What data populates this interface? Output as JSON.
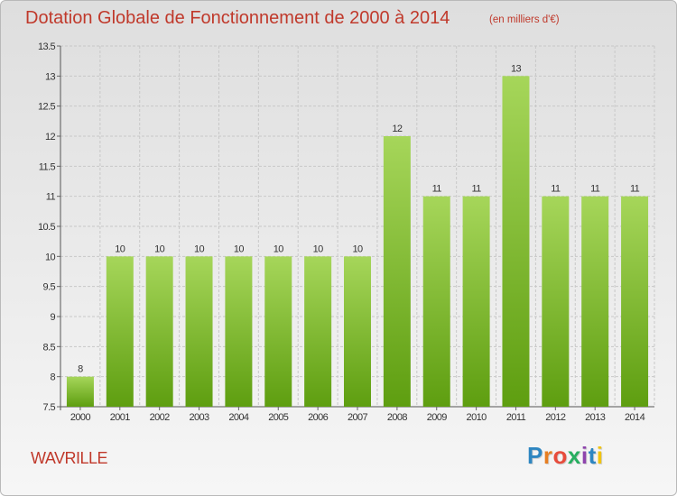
{
  "title": "Dotation Globale de Fonctionnement de 2000 à 2014",
  "subtitle": "(en milliers d'€)",
  "commune": "WAVRILLE",
  "logo": {
    "text": "Proxiti",
    "letters": [
      "P",
      "r",
      "o",
      "x",
      "i",
      "t",
      "i"
    ],
    "colors": [
      "#2e86c1",
      "#e67e22",
      "#e74c3c",
      "#27ae60",
      "#8e44ad",
      "#2e86c1",
      "#f1c40f"
    ]
  },
  "colors": {
    "bar_top": "#a6d65a",
    "bar_bottom": "#5e9e10",
    "title": "#c0392b",
    "grid": "#c8c8c8"
  },
  "chart_data": {
    "type": "bar",
    "title": "Dotation Globale de Fonctionnement de 2000 à 2014",
    "subtitle": "(en milliers d'€)",
    "categories": [
      "2000",
      "2001",
      "2002",
      "2003",
      "2004",
      "2005",
      "2006",
      "2007",
      "2008",
      "2009",
      "2010",
      "2011",
      "2012",
      "2013",
      "2014"
    ],
    "values": [
      8,
      10,
      10,
      10,
      10,
      10,
      10,
      10,
      12,
      11,
      11,
      13,
      11,
      11,
      11
    ],
    "ylim": [
      7.5,
      13.5
    ],
    "yticks": [
      7.5,
      8,
      8.5,
      9,
      9.5,
      10,
      10.5,
      11,
      11.5,
      12,
      12.5,
      13,
      13.5
    ],
    "ytick_labels": [
      "7.5",
      "8",
      "8.5",
      "9",
      "9.5",
      "10",
      "10.5",
      "11",
      "11.5",
      "12",
      "12.5",
      "13",
      "13.5"
    ],
    "grid": true,
    "legend": "none"
  }
}
